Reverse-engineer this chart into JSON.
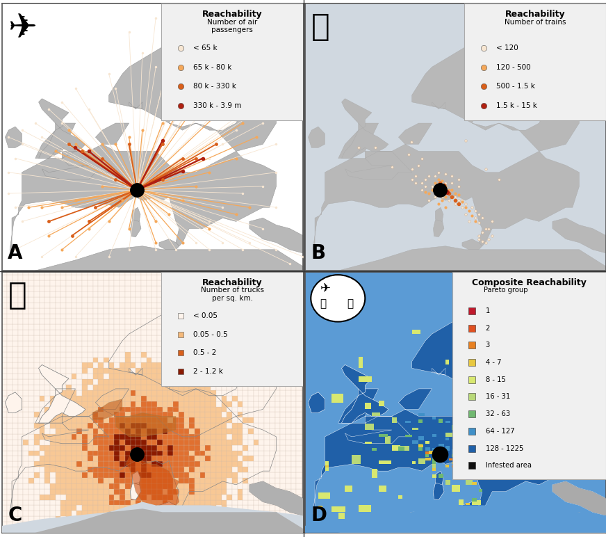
{
  "fig_width": 8.72,
  "fig_height": 7.72,
  "bg_color": "#ffffff",
  "sea_color_AB": "#ffffff",
  "sea_color_D": "#5b9bd5",
  "land_color": "#b0b0b0",
  "border_color": "#888888",
  "panel_labels": [
    "A",
    "B",
    "C",
    "D"
  ],
  "panel_label_fontsize": 18,
  "panel_A": {
    "title": "Reachability",
    "legend_title": "Number of air\npassengers",
    "legend_items": [
      {
        "label": "< 65 k",
        "color": "#f7e6d2"
      },
      {
        "label": "65 k - 80 k",
        "color": "#f5a85a"
      },
      {
        "label": "80 k - 330 k",
        "color": "#d95f1a"
      },
      {
        "label": "330 k - 3.9 m",
        "color": "#b02010"
      }
    ]
  },
  "panel_B": {
    "title": "Reachability",
    "legend_title": "Number of trains",
    "legend_items": [
      {
        "label": "< 120",
        "color": "#f7e6d2"
      },
      {
        "label": "120 - 500",
        "color": "#f5a85a"
      },
      {
        "label": "500 - 1.5 k",
        "color": "#d95f1a"
      },
      {
        "label": "1.5 k - 15 k",
        "color": "#b02010"
      }
    ]
  },
  "panel_C": {
    "title": "Reachability",
    "legend_title": "Number of trucks\nper sq. km.",
    "legend_items": [
      {
        "label": "< 0.05",
        "color": "#fef4ec"
      },
      {
        "label": "0.05 - 0.5",
        "color": "#f5b97a"
      },
      {
        "label": "0.5 - 2",
        "color": "#d95f1a"
      },
      {
        "label": "2 - 1.2 k",
        "color": "#8B1a00"
      }
    ]
  },
  "panel_D": {
    "title": "Composite Reachability",
    "legend_title": "Pareto group",
    "legend_items": [
      {
        "label": "1",
        "color": "#c0192c"
      },
      {
        "label": "2",
        "color": "#e05020"
      },
      {
        "label": "3",
        "color": "#e88020"
      },
      {
        "label": "4 - 7",
        "color": "#e8c840"
      },
      {
        "label": "8 - 15",
        "color": "#d8e870"
      },
      {
        "label": "16 - 31",
        "color": "#b8d878"
      },
      {
        "label": "32 - 63",
        "color": "#70b870"
      },
      {
        "label": "64 - 127",
        "color": "#4090c8"
      },
      {
        "label": "128 - 1225",
        "color": "#2060a8"
      },
      {
        "label": "Infested area",
        "color": "#101010"
      }
    ]
  }
}
